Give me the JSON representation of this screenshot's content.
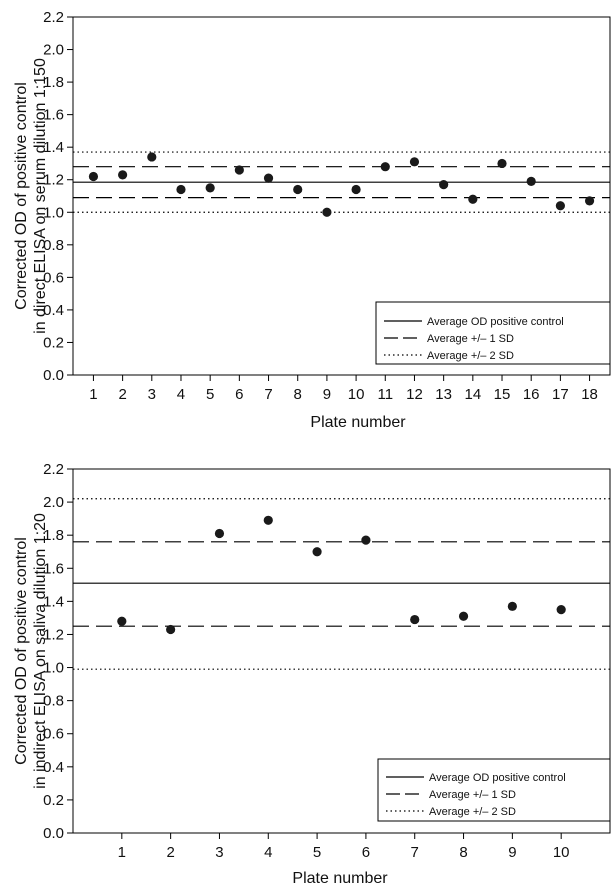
{
  "chart_data": [
    {
      "type": "scatter",
      "xlabel": "Plate number",
      "ylabel_line1": "Corrected OD of positive control",
      "ylabel_line2": "in direct ELISA on serum dilution 1:150",
      "ylim": [
        0.0,
        2.2
      ],
      "yticks": [
        "0.0",
        "0.2",
        "0.4",
        "0.6",
        "0.8",
        "1.0",
        "1.2",
        "1.4",
        "1.6",
        "1.8",
        "2.0",
        "2.2"
      ],
      "xlim": [
        0.3,
        18.7
      ],
      "categories": [
        "1",
        "2",
        "3",
        "4",
        "5",
        "6",
        "7",
        "8",
        "9",
        "10",
        "11",
        "12",
        "13",
        "14",
        "15",
        "16",
        "17",
        "18"
      ],
      "values": [
        1.22,
        1.23,
        1.34,
        1.14,
        1.15,
        1.26,
        1.21,
        1.14,
        1.0,
        1.14,
        1.28,
        1.31,
        1.17,
        1.08,
        1.3,
        1.19,
        1.04,
        1.07
      ],
      "reference_lines": {
        "mean": 1.185,
        "sd1": [
          1.09,
          1.28
        ],
        "sd2": [
          1.0,
          1.37
        ]
      },
      "legend": [
        "Average OD positive control",
        "Average +/– 1 SD",
        "Average +/– 2 SD"
      ],
      "legend_position": "bottom-right",
      "grid": false
    },
    {
      "type": "scatter",
      "xlabel": "Plate number",
      "ylabel_line1": "Corrected OD of positive control",
      "ylabel_line2": "in indirect ELISA on saliva dilution 1:20",
      "ylim": [
        0.0,
        2.2
      ],
      "yticks": [
        "0.0",
        "0.2",
        "0.4",
        "0.6",
        "0.8",
        "1.0",
        "1.2",
        "1.4",
        "1.6",
        "1.8",
        "2.0",
        "2.2"
      ],
      "xlim": [
        0.0,
        11.0
      ],
      "categories": [
        "1",
        "2",
        "3",
        "4",
        "5",
        "6",
        "7",
        "8",
        "9",
        "10"
      ],
      "values": [
        1.28,
        1.23,
        1.81,
        1.89,
        1.7,
        1.77,
        1.29,
        1.31,
        1.37,
        1.35
      ],
      "reference_lines": {
        "mean": 1.51,
        "sd1": [
          1.25,
          1.76
        ],
        "sd2": [
          0.99,
          2.02
        ]
      },
      "legend": [
        "Average OD positive control",
        "Average +/– 1 SD",
        "Average +/– 2 SD"
      ],
      "legend_position": "bottom-right",
      "grid": false
    }
  ]
}
